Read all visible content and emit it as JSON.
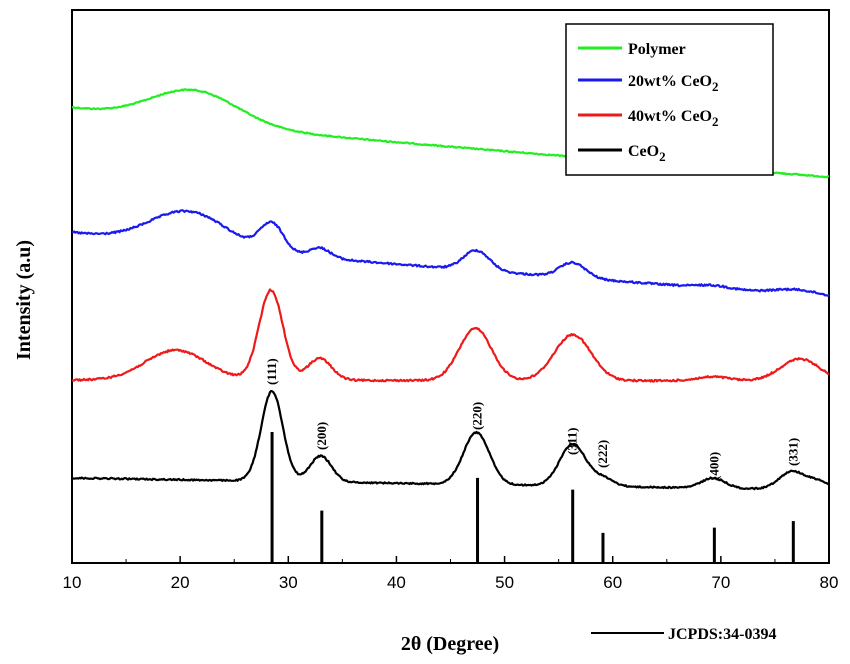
{
  "chart_data": {
    "type": "line",
    "xlabel": "2θ (Degree)",
    "ylabel": "Intensity (a.u)",
    "xlim": [
      10,
      80
    ],
    "x_ticks": [
      10,
      20,
      30,
      40,
      50,
      60,
      70,
      80
    ],
    "legend": {
      "placement": "top-right",
      "entries": [
        {
          "label": "Polymer",
          "subscript": "",
          "color": "#22ee22"
        },
        {
          "label": "20wt% CeO",
          "subscript": "2",
          "color": "#1a1aee"
        },
        {
          "label": "40wt% CeO",
          "subscript": "2",
          "color": "#ee1a1a"
        },
        {
          "label": "CeO",
          "subscript": "2",
          "color": "#000000"
        }
      ]
    },
    "series": [
      {
        "name": "Polymer",
        "color": "#22ee22",
        "baseline_y": 118,
        "baseline_end_y": 177,
        "peaks": [
          {
            "x": 21.3,
            "h": 33,
            "w": 4.0
          }
        ],
        "decay": {
          "amp": 68,
          "tau": 14
        },
        "noise": 1.2
      },
      {
        "name": "20wt% CeO2",
        "color": "#1a1aee",
        "baseline_y": 240,
        "baseline_end_y": 297,
        "peaks": [
          {
            "x": 20.8,
            "h": 35,
            "w": 3.6
          },
          {
            "x": 28.5,
            "h": 28,
            "w": 1.1
          },
          {
            "x": 32.9,
            "h": 10,
            "w": 1.0
          },
          {
            "x": 47.4,
            "h": 20,
            "w": 1.2
          },
          {
            "x": 56.3,
            "h": 15,
            "w": 1.2
          },
          {
            "x": 69.3,
            "h": 3,
            "w": 1.5
          },
          {
            "x": 77.0,
            "h": 5,
            "w": 2.0
          }
        ],
        "decay": {
          "amp": 50,
          "tau": 10
        },
        "noise": 1.8
      },
      {
        "name": "40wt% CeO2",
        "color": "#ee1a1a",
        "baseline_y": 380,
        "baseline_end_y": 381,
        "peaks": [
          {
            "x": 19.6,
            "h": 30,
            "w": 2.8
          },
          {
            "x": 28.4,
            "h": 90,
            "w": 1.1
          },
          {
            "x": 32.9,
            "h": 22,
            "w": 1.1
          },
          {
            "x": 47.3,
            "h": 52,
            "w": 1.5
          },
          {
            "x": 56.3,
            "h": 46,
            "w": 1.7
          },
          {
            "x": 69.3,
            "h": 4,
            "w": 1.5
          },
          {
            "x": 77.3,
            "h": 22,
            "w": 1.8
          }
        ],
        "decay": {
          "amp": 0,
          "tau": 10
        },
        "noise": 1.8
      },
      {
        "name": "CeO2",
        "color": "#000000",
        "baseline_y": 478,
        "baseline_end_y": 490,
        "peaks": [
          {
            "x": 28.5,
            "h": 90,
            "w": 1.0
          },
          {
            "x": 33.0,
            "h": 26,
            "w": 1.0
          },
          {
            "x": 47.4,
            "h": 52,
            "w": 1.2
          },
          {
            "x": 56.3,
            "h": 42,
            "w": 1.2
          },
          {
            "x": 59.1,
            "h": 8,
            "w": 1.0
          },
          {
            "x": 69.3,
            "h": 10,
            "w": 1.1
          },
          {
            "x": 76.6,
            "h": 18,
            "w": 1.2
          },
          {
            "x": 79.1,
            "h": 8,
            "w": 1.0
          }
        ],
        "decay": {
          "amp": 0,
          "tau": 10
        },
        "noise": 1.4
      }
    ],
    "reference_lines": {
      "name": "JCPDS:34-0394",
      "positions": [
        28.5,
        33.1,
        47.5,
        56.3,
        59.1,
        69.4,
        76.7
      ],
      "relative_intensity": [
        100,
        40,
        65,
        56,
        23,
        27,
        32
      ]
    },
    "hkl_labels": [
      {
        "x": 28.5,
        "text": "(111)"
      },
      {
        "x": 33.1,
        "text": "(200)"
      },
      {
        "x": 47.5,
        "text": "(220)"
      },
      {
        "x": 56.3,
        "text": "(311)"
      },
      {
        "x": 59.1,
        "text": "(222)"
      },
      {
        "x": 69.4,
        "text": "(400)"
      },
      {
        "x": 76.7,
        "text": "(331)"
      }
    ],
    "reference_legend": "JCPDS:34-0394"
  }
}
